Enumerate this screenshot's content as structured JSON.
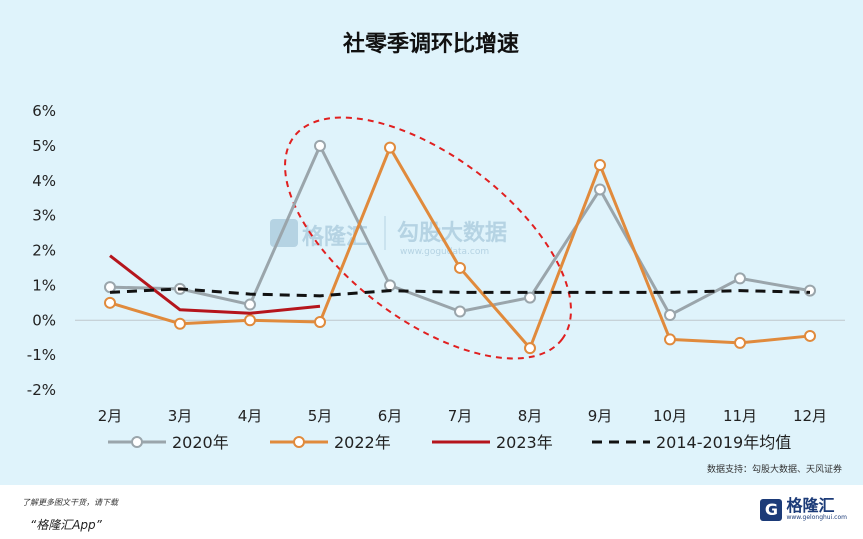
{
  "chart_data": {
    "type": "line",
    "title": "社零季调环比增速",
    "categories": [
      "2月",
      "3月",
      "4月",
      "5月",
      "6月",
      "7月",
      "8月",
      "9月",
      "10月",
      "11月",
      "12月"
    ],
    "y_ticks": [
      "6%",
      "5%",
      "4%",
      "3%",
      "2%",
      "1%",
      "0%",
      "-1%",
      "-2%"
    ],
    "ylim": [
      -2,
      6
    ],
    "y_unit": "%",
    "grid": false,
    "legend_position": "bottom",
    "series": [
      {
        "name": "2020年",
        "color": "#9aa5ab",
        "style": "solid",
        "markers": true,
        "values": [
          0.95,
          0.9,
          0.45,
          5.0,
          1.0,
          0.25,
          0.65,
          3.75,
          0.15,
          1.2,
          0.85
        ]
      },
      {
        "name": "2022年",
        "color": "#e08a3c",
        "style": "solid",
        "markers": true,
        "values": [
          0.5,
          -0.1,
          0.0,
          -0.05,
          4.95,
          1.5,
          -0.8,
          4.45,
          -0.55,
          -0.65,
          -0.45
        ]
      },
      {
        "name": "2023年",
        "color": "#b5151c",
        "style": "solid",
        "markers": false,
        "values": [
          1.85,
          0.3,
          0.2,
          0.4,
          null,
          null,
          null,
          null,
          null,
          null,
          null
        ]
      },
      {
        "name": "2014-2019年均值",
        "color": "#111111",
        "style": "dashed",
        "markers": false,
        "values": [
          0.8,
          0.9,
          0.75,
          0.7,
          0.85,
          0.8,
          0.8,
          0.8,
          0.8,
          0.85,
          0.8
        ]
      }
    ],
    "annotation": {
      "type": "dashed-ellipse",
      "color": "#e02020"
    },
    "source": "数据支持：勾股大数据、天风证券"
  },
  "watermark": {
    "brand": "格隆汇",
    "name": "勾股大数据",
    "url": "www.gogudata.com"
  },
  "footer": {
    "line1": "了解更多图文干货，请下载",
    "line2": "“格隆汇App”",
    "brand_name": "格隆汇",
    "brand_url": "www.gelonghui.com",
    "brand_letter": "G"
  }
}
